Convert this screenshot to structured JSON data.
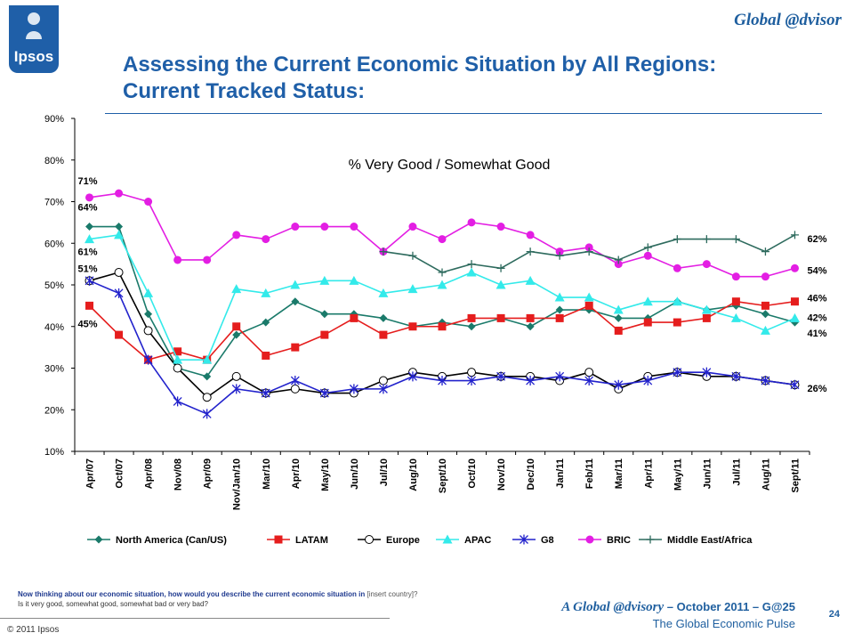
{
  "header": {
    "logo_text": "Ipsos",
    "brand": "Global @dvisor",
    "title_line1": "Assessing the Current Economic Situation by All Regions:",
    "title_line2": "Current Tracked Status:"
  },
  "chart_data": {
    "type": "line",
    "title": "% Very Good / Somewhat Good",
    "ylim": [
      10,
      90
    ],
    "yticks": [
      "10%",
      "20%",
      "30%",
      "40%",
      "50%",
      "60%",
      "70%",
      "80%",
      "90%"
    ],
    "grid": false,
    "legend_position": "bottom",
    "categories": [
      "Apr/07",
      "Oct/07",
      "Apr/08",
      "Nov/08",
      "Apr/09",
      "Nov/Jan/10",
      "Mar/10",
      "Apr/10",
      "May/10",
      "Jun/10",
      "Jul/10",
      "Aug/10",
      "Sept/10",
      "Oct/10",
      "Nov/10",
      "Dec/10",
      "Jan/11",
      "Feb/11",
      "Mar/11",
      "Apr/11",
      "May/11",
      "Jun/11",
      "Jul/11",
      "Aug/11",
      "Sept/11"
    ],
    "series": [
      {
        "name": "North America (Can/US)",
        "color": "#1a7a6a",
        "marker": "diamond",
        "values": [
          64,
          64,
          43,
          30,
          28,
          38,
          41,
          46,
          43,
          43,
          42,
          40,
          41,
          40,
          42,
          40,
          44,
          44,
          42,
          42,
          46,
          44,
          45,
          43,
          41
        ]
      },
      {
        "name": "LATAM",
        "color": "#e51d1d",
        "marker": "square",
        "values": [
          45,
          38,
          32,
          34,
          32,
          40,
          33,
          35,
          38,
          42,
          38,
          40,
          40,
          42,
          42,
          42,
          42,
          45,
          39,
          41,
          41,
          42,
          46,
          45,
          46
        ]
      },
      {
        "name": "Europe",
        "color": "#000000",
        "marker": "circle",
        "values": [
          51,
          53,
          39,
          30,
          23,
          28,
          24,
          25,
          24,
          24,
          27,
          29,
          28,
          29,
          28,
          28,
          27,
          29,
          25,
          28,
          29,
          28,
          28,
          27,
          26
        ]
      },
      {
        "name": "APAC",
        "color": "#33eaea",
        "marker": "triangle",
        "values": [
          61,
          62,
          48,
          32,
          32,
          49,
          48,
          50,
          51,
          51,
          48,
          49,
          50,
          53,
          50,
          51,
          47,
          47,
          44,
          46,
          46,
          44,
          42,
          39,
          42
        ]
      },
      {
        "name": "G8",
        "color": "#2222cc",
        "marker": "star",
        "values": [
          51,
          48,
          32,
          22,
          19,
          25,
          24,
          27,
          24,
          25,
          25,
          28,
          27,
          27,
          28,
          27,
          28,
          27,
          26,
          27,
          29,
          29,
          28,
          27,
          26
        ]
      },
      {
        "name": "BRIC",
        "color": "#e31ee3",
        "marker": "circle-filled",
        "values": [
          71,
          72,
          70,
          56,
          56,
          62,
          61,
          64,
          64,
          64,
          58,
          64,
          61,
          65,
          64,
          62,
          58,
          59,
          55,
          57,
          54,
          55,
          52,
          52,
          54
        ]
      },
      {
        "name": "Middle East/Africa",
        "color": "#2e6b5e",
        "marker": "plus",
        "values": [
          null,
          null,
          null,
          null,
          null,
          null,
          null,
          null,
          null,
          null,
          58,
          57,
          53,
          55,
          54,
          58,
          57,
          58,
          56,
          59,
          61,
          61,
          61,
          58,
          62
        ]
      }
    ],
    "data_labels": [
      {
        "text": "71%",
        "series": "BRIC",
        "index": 0
      },
      {
        "text": "64%",
        "series": "North America (Can/US)",
        "index": 0
      },
      {
        "text": "61%",
        "series": "APAC",
        "index": 0
      },
      {
        "text": "51%",
        "series": "Europe",
        "index": 0
      },
      {
        "text": "45%",
        "series": "LATAM",
        "index": 0
      },
      {
        "text": "62%",
        "series": "Middle East/Africa",
        "index": 24
      },
      {
        "text": "54%",
        "series": "BRIC",
        "index": 24
      },
      {
        "text": "46%",
        "series": "LATAM",
        "index": 24
      },
      {
        "text": "42%",
        "series": "APAC",
        "index": 24
      },
      {
        "text": "41%",
        "series": "North America (Can/US)",
        "index": 24
      },
      {
        "text": "26%",
        "series": "G8",
        "index": 24
      }
    ]
  },
  "footer": {
    "question_main": "Now thinking about our economic situation, how would you describe the current economic situation in",
    "question_insert": "[insert country]?",
    "question_sub": "Is it very good, somewhat good, somewhat bad or very bad?",
    "copyright": "© 2011 Ipsos",
    "report_italic": "A Global @dvisory",
    "report_rest": "– October 2011 – G@25",
    "report_sub": "The Global Economic Pulse",
    "page_number": "24"
  }
}
